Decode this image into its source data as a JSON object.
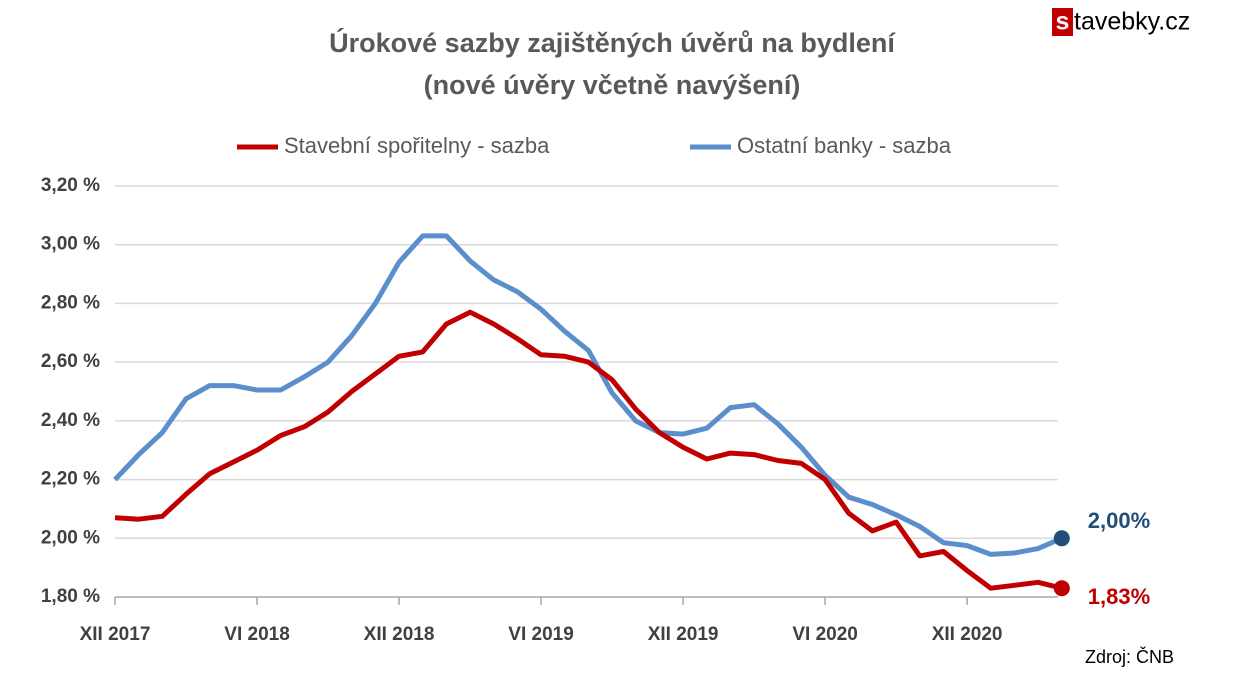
{
  "chart_data": {
    "type": "line",
    "title": [
      "Úrokové sazby zajištěných úvěrů na bydlení",
      "(nové úvěry včetně navýšení)"
    ],
    "categories": [
      "XII 2017",
      null,
      null,
      null,
      null,
      null,
      "VI 2018",
      null,
      null,
      null,
      null,
      null,
      "XII 2018",
      null,
      null,
      null,
      null,
      null,
      "VI 2019",
      null,
      null,
      null,
      null,
      null,
      "XII 2019",
      null,
      null,
      null,
      null,
      null,
      "VI 2020",
      null,
      null,
      null,
      null,
      null,
      "XII 2020",
      null,
      null,
      null,
      null
    ],
    "series": [
      {
        "name": "Stavební spořitelny - sazba",
        "color": "#c00000",
        "label_color": "#c00000",
        "values": [
          2.07,
          2.065,
          2.075,
          2.15,
          2.22,
          2.26,
          2.3,
          2.35,
          2.38,
          2.43,
          2.5,
          2.56,
          2.62,
          2.635,
          2.73,
          2.77,
          2.73,
          2.68,
          2.625,
          2.62,
          2.6,
          2.54,
          2.44,
          2.36,
          2.31,
          2.27,
          2.29,
          2.285,
          2.265,
          2.255,
          2.2,
          2.085,
          2.025,
          2.055,
          1.94,
          1.955,
          1.89,
          1.83,
          1.84,
          1.85,
          1.83
        ],
        "value_labels": [
          null,
          null,
          null,
          null,
          null,
          null,
          null,
          null,
          null,
          null,
          null,
          null,
          null,
          null,
          null,
          null,
          null,
          null,
          null,
          null,
          null,
          null,
          null,
          null,
          null,
          null,
          null,
          null,
          null,
          null,
          null,
          null,
          null,
          null,
          null,
          null,
          null,
          null,
          null,
          null,
          "1,83%"
        ]
      },
      {
        "name": "Ostatní banky - sazba",
        "color": "#5b8fcc",
        "label_color": "#1f4e79",
        "values": [
          2.2,
          2.285,
          2.36,
          2.475,
          2.52,
          2.52,
          2.505,
          2.505,
          2.55,
          2.6,
          2.69,
          2.8,
          2.94,
          3.03,
          3.03,
          2.945,
          2.88,
          2.84,
          2.78,
          2.705,
          2.64,
          2.495,
          2.4,
          2.36,
          2.355,
          2.375,
          2.445,
          2.455,
          2.39,
          2.31,
          2.215,
          2.14,
          2.115,
          2.08,
          2.04,
          1.985,
          1.975,
          1.945,
          1.95,
          1.965,
          2.0
        ],
        "value_labels": [
          null,
          null,
          null,
          null,
          null,
          null,
          null,
          null,
          null,
          null,
          null,
          null,
          null,
          null,
          null,
          null,
          null,
          null,
          null,
          null,
          null,
          null,
          null,
          null,
          null,
          null,
          null,
          null,
          null,
          null,
          null,
          null,
          null,
          null,
          null,
          null,
          null,
          null,
          null,
          null,
          "2,00%"
        ]
      }
    ],
    "ylim": [
      1.8,
      3.2
    ],
    "yticks": [
      {
        "value": 1.8,
        "label": "1,80 %"
      },
      {
        "value": 2.0,
        "label": "2,00 %"
      },
      {
        "value": 2.2,
        "label": "2,20 %"
      },
      {
        "value": 2.4,
        "label": "2,40 %"
      },
      {
        "value": 2.6,
        "label": "2,60 %"
      },
      {
        "value": 2.8,
        "label": "2,80 %"
      },
      {
        "value": 3.0,
        "label": "3,00 %"
      },
      {
        "value": 3.2,
        "label": "3,20 %"
      }
    ],
    "grid": true
  },
  "brand": {
    "mark": "s",
    "text": "tavebky.cz"
  },
  "source": "Zdroj: ČNB"
}
